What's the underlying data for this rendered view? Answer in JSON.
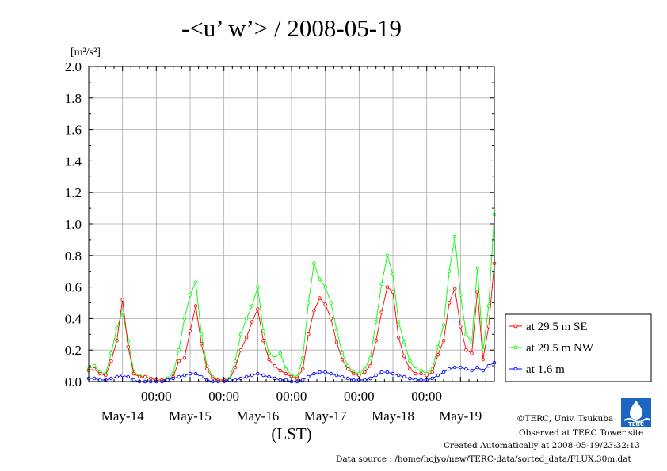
{
  "chart_data": {
    "type": "line",
    "title": "-<u’ w’> / 2008-05-19",
    "ylabel_unit": "[m²/s²]",
    "xlabel": "(LST)",
    "ylim": [
      0,
      2.0
    ],
    "yticks": [
      "0.0",
      "0.2",
      "0.4",
      "0.6",
      "0.8",
      "1.0",
      "1.2",
      "1.4",
      "1.6",
      "1.8",
      "2.0"
    ],
    "xlim": [
      0,
      144
    ],
    "x_midnight_label": "00:00",
    "x_midnight_hours": [
      24,
      48,
      72,
      96,
      120
    ],
    "x_day_labels": [
      {
        "label": "May-14",
        "hour": 12
      },
      {
        "label": "May-15",
        "hour": 36
      },
      {
        "label": "May-16",
        "hour": 60
      },
      {
        "label": "May-17",
        "hour": 84
      },
      {
        "label": "May-18",
        "hour": 108
      },
      {
        "label": "May-19",
        "hour": 132
      }
    ],
    "grid": true,
    "legend_position": "right",
    "series": [
      {
        "name": "at 29.5 m SE",
        "color": "#ff0000",
        "x": [
          0,
          2,
          4,
          6,
          8,
          10,
          12,
          14,
          16,
          18,
          20,
          22,
          24,
          26,
          28,
          30,
          32,
          34,
          36,
          38,
          40,
          42,
          44,
          46,
          48,
          50,
          52,
          54,
          56,
          58,
          60,
          62,
          64,
          66,
          68,
          70,
          72,
          74,
          76,
          78,
          80,
          82,
          84,
          86,
          88,
          90,
          92,
          94,
          96,
          98,
          100,
          102,
          104,
          106,
          108,
          110,
          112,
          114,
          116,
          118,
          120,
          122,
          124,
          126,
          128,
          130,
          132,
          134,
          136,
          138,
          140,
          142,
          144
        ],
        "y": [
          0.07,
          0.08,
          0.05,
          0.04,
          0.13,
          0.26,
          0.52,
          0.22,
          0.05,
          0.03,
          0.03,
          0.02,
          0.01,
          0.01,
          0.01,
          0.03,
          0.13,
          0.15,
          0.32,
          0.48,
          0.24,
          0.08,
          0.02,
          0.01,
          0.01,
          0.01,
          0.09,
          0.2,
          0.28,
          0.38,
          0.46,
          0.26,
          0.14,
          0.1,
          0.07,
          0.05,
          0.03,
          0.02,
          0.08,
          0.3,
          0.45,
          0.53,
          0.49,
          0.4,
          0.25,
          0.14,
          0.08,
          0.05,
          0.04,
          0.06,
          0.1,
          0.26,
          0.44,
          0.6,
          0.57,
          0.28,
          0.16,
          0.08,
          0.05,
          0.05,
          0.04,
          0.06,
          0.17,
          0.26,
          0.5,
          0.59,
          0.35,
          0.2,
          0.18,
          0.57,
          0.14,
          0.35,
          0.75
        ]
      },
      {
        "name": "at 29.5 m NW",
        "color": "#00ff00",
        "x": [
          0,
          2,
          4,
          6,
          8,
          10,
          12,
          14,
          16,
          18,
          20,
          22,
          24,
          26,
          28,
          30,
          32,
          34,
          36,
          38,
          40,
          42,
          44,
          46,
          48,
          50,
          52,
          54,
          56,
          58,
          60,
          62,
          64,
          66,
          68,
          70,
          72,
          74,
          76,
          78,
          80,
          82,
          84,
          86,
          88,
          90,
          92,
          94,
          96,
          98,
          100,
          102,
          104,
          106,
          108,
          110,
          112,
          114,
          116,
          118,
          120,
          122,
          124,
          126,
          128,
          130,
          132,
          134,
          136,
          138,
          140,
          142,
          144
        ],
        "y": [
          0.08,
          0.1,
          0.06,
          0.05,
          0.18,
          0.34,
          0.44,
          0.26,
          0.06,
          0.04,
          0.03,
          0.02,
          0.01,
          0.01,
          0.02,
          0.05,
          0.2,
          0.4,
          0.55,
          0.63,
          0.3,
          0.1,
          0.03,
          0.01,
          0.01,
          0.02,
          0.13,
          0.3,
          0.4,
          0.48,
          0.6,
          0.32,
          0.18,
          0.15,
          0.18,
          0.08,
          0.04,
          0.03,
          0.15,
          0.5,
          0.75,
          0.65,
          0.6,
          0.5,
          0.33,
          0.18,
          0.1,
          0.06,
          0.05,
          0.08,
          0.15,
          0.38,
          0.62,
          0.8,
          0.68,
          0.38,
          0.25,
          0.13,
          0.08,
          0.07,
          0.05,
          0.08,
          0.22,
          0.36,
          0.7,
          0.92,
          0.55,
          0.3,
          0.25,
          0.72,
          0.2,
          0.48,
          1.06
        ]
      },
      {
        "name": "at 1.6 m",
        "color": "#0000ff",
        "x": [
          0,
          2,
          4,
          6,
          8,
          10,
          12,
          14,
          16,
          18,
          20,
          22,
          24,
          26,
          28,
          30,
          32,
          34,
          36,
          38,
          40,
          42,
          44,
          46,
          48,
          50,
          52,
          54,
          56,
          58,
          60,
          62,
          64,
          66,
          68,
          70,
          72,
          74,
          76,
          78,
          80,
          82,
          84,
          86,
          88,
          90,
          92,
          94,
          96,
          98,
          100,
          102,
          104,
          106,
          108,
          110,
          112,
          114,
          116,
          118,
          120,
          122,
          124,
          126,
          128,
          130,
          132,
          134,
          136,
          138,
          140,
          142,
          144
        ],
        "y": [
          0.02,
          0.02,
          0.01,
          0.01,
          0.02,
          0.03,
          0.04,
          0.03,
          0.01,
          0.0,
          0.0,
          0.0,
          0.0,
          0.0,
          0.01,
          0.02,
          0.03,
          0.04,
          0.05,
          0.05,
          0.03,
          0.01,
          0.0,
          0.0,
          0.0,
          0.01,
          0.01,
          0.02,
          0.03,
          0.04,
          0.05,
          0.04,
          0.03,
          0.02,
          0.01,
          0.01,
          0.0,
          0.0,
          0.01,
          0.03,
          0.05,
          0.06,
          0.06,
          0.05,
          0.04,
          0.03,
          0.02,
          0.01,
          0.01,
          0.01,
          0.02,
          0.04,
          0.06,
          0.06,
          0.05,
          0.04,
          0.03,
          0.02,
          0.01,
          0.01,
          0.01,
          0.02,
          0.04,
          0.06,
          0.08,
          0.09,
          0.09,
          0.08,
          0.07,
          0.09,
          0.07,
          0.1,
          0.12
        ]
      }
    ]
  },
  "footer": {
    "copyright": "©TERC, Univ. Tsukuba",
    "observed": "Observed at TERC Tower site",
    "created": "Created Automatically at 2008-05-19/23:32:13",
    "source": "Data source : /home/hojyo/new/TERC-data/sorted_data/FLUX.30m.dat"
  },
  "logo": {
    "text": "TERC"
  }
}
